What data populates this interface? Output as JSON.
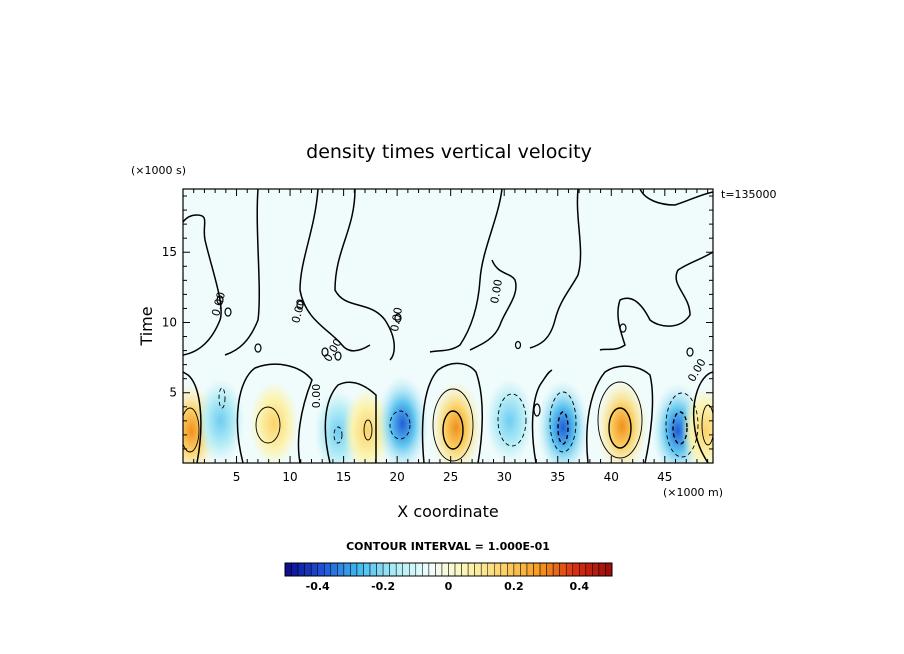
{
  "chart_data": {
    "type": "heatmap",
    "title": "density times vertical velocity",
    "xlabel": "X coordinate",
    "ylabel": "Time",
    "x_unit": "(×1000 m)",
    "y_unit": "(×1000 s)",
    "time_stamp": "t=135000",
    "xlim": [
      0,
      49.5
    ],
    "ylim": [
      0,
      19.5
    ],
    "x_ticks": [
      5,
      10,
      15,
      20,
      25,
      30,
      35,
      40,
      45
    ],
    "y_ticks": [
      5,
      10,
      15
    ],
    "contour_label": "0.00",
    "contour_interval_text": "CONTOUR INTERVAL = 1.000E-01",
    "colorbar": {
      "min": -0.5,
      "max": 0.5,
      "ticks": [
        -0.4,
        -0.2,
        0,
        0.2,
        0.4
      ],
      "tick_labels": [
        "-0.4",
        "-0.2",
        "0",
        "0.2",
        "0.4"
      ]
    },
    "cells": [
      {
        "x": 0.8,
        "y": 2.3,
        "value": 0.2
      },
      {
        "x": 3.5,
        "y": 3.0,
        "value": -0.1
      },
      {
        "x": 8.5,
        "y": 2.8,
        "value": 0.1
      },
      {
        "x": 14.5,
        "y": 2.2,
        "value": -0.1
      },
      {
        "x": 17.2,
        "y": 2.3,
        "value": 0.1
      },
      {
        "x": 20.5,
        "y": 2.8,
        "value": -0.2
      },
      {
        "x": 25.5,
        "y": 2.5,
        "value": 0.3
      },
      {
        "x": 30.5,
        "y": 3.0,
        "value": -0.15
      },
      {
        "x": 35.5,
        "y": 2.5,
        "value": -0.3
      },
      {
        "x": 41.0,
        "y": 2.6,
        "value": 0.3
      },
      {
        "x": 46.2,
        "y": 2.3,
        "value": -0.35
      },
      {
        "x": 48.8,
        "y": 2.3,
        "value": 0.1
      }
    ]
  },
  "colors": {
    "background": "#f0fbfc",
    "colorbar_stops": [
      "#0a0a8a",
      "#1f4fd8",
      "#3fb8ee",
      "#a9ecf5",
      "#f2fdfd",
      "#fbf6b4",
      "#fbd36a",
      "#f79a1f",
      "#d72e10",
      "#9a0c0c"
    ]
  }
}
